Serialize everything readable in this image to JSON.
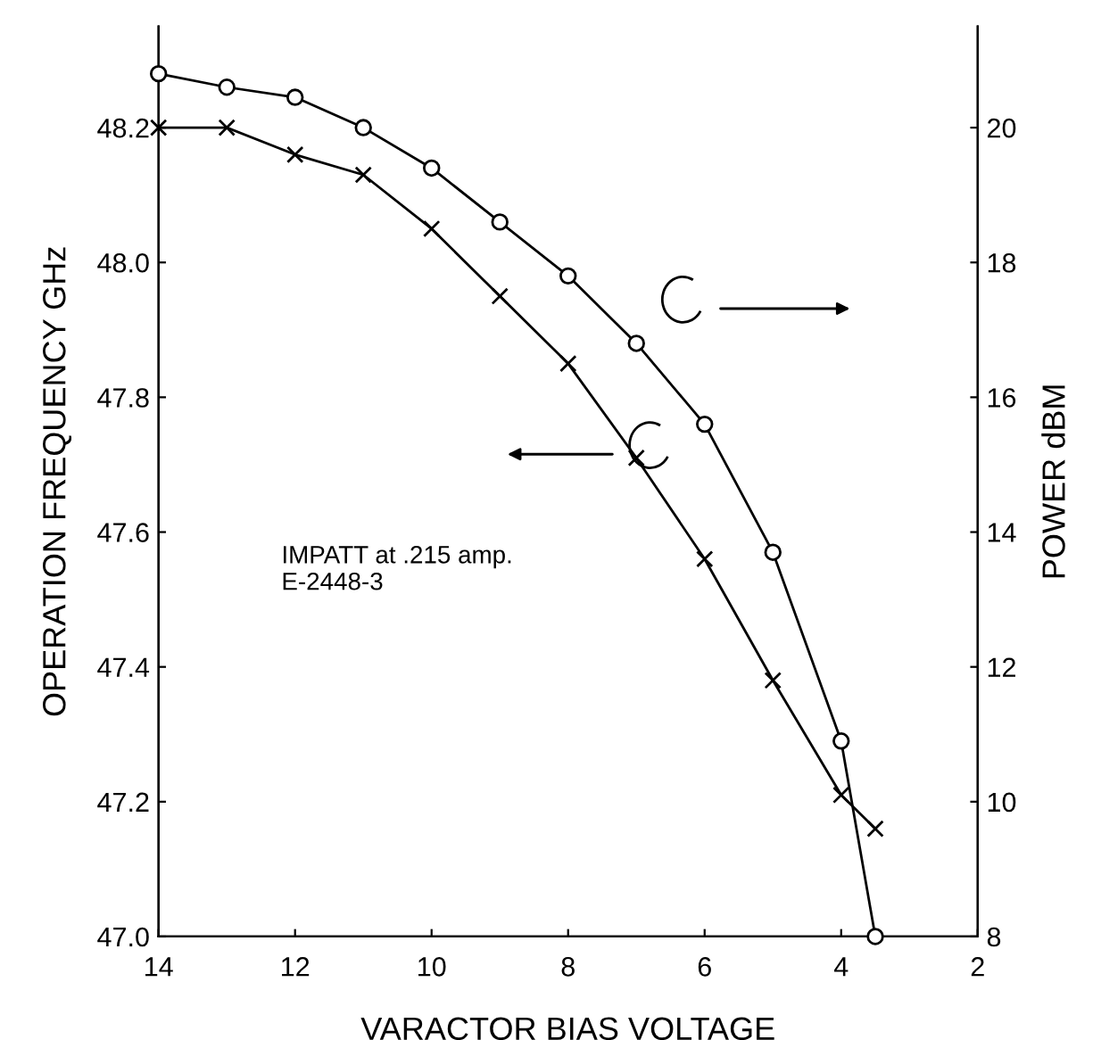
{
  "chart_data": {
    "type": "line",
    "xlabel": "VARACTOR BIAS VOLTAGE",
    "ylabel": "OPERATION FREQUENCY GHz",
    "y2label": "POWER dBM",
    "x": [
      14,
      13,
      12,
      11,
      10,
      9,
      8,
      7,
      6,
      5,
      4,
      3.5
    ],
    "series": [
      {
        "color": "#000000",
        "marker": "cross",
        "values": [
          48.2,
          48.2,
          48.16,
          48.13,
          48.05,
          47.95,
          47.85,
          47.71,
          47.56,
          47.38,
          47.21,
          47.16
        ]
      },
      {
        "color": "#000000",
        "marker": "circle",
        "axis": "y2",
        "values": [
          20.8,
          20.6,
          20.45,
          20.0,
          19.4,
          18.6,
          17.8,
          16.8,
          15.6,
          13.7,
          10.9,
          8.0
        ]
      }
    ],
    "xlim": [
      14,
      2
    ],
    "xticks": [
      14,
      12,
      10,
      8,
      6,
      4,
      2
    ],
    "ylim": [
      47.0,
      48.35
    ],
    "yticks": [
      {
        "value": 47.0,
        "label": "47.0"
      },
      47.2,
      47.4,
      47.6,
      47.8,
      {
        "value": 48.0,
        "label": "48.0"
      },
      48.2
    ],
    "y2lim": [
      8,
      21.5
    ],
    "y2ticks": [
      8,
      10,
      12,
      14,
      16,
      18,
      20
    ],
    "annotations": [
      "IMPATT at .215 amp.\nE-2448-3"
    ],
    "grid": false,
    "legend": false,
    "line_style": "solid"
  }
}
